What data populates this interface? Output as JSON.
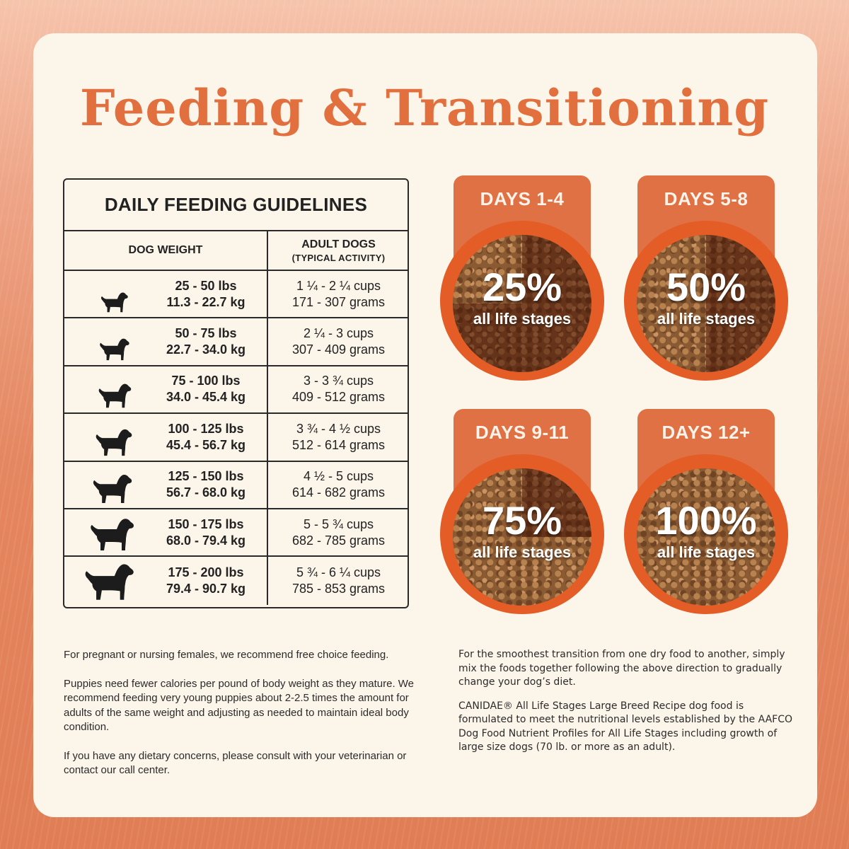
{
  "title": "Feeding & Transitioning",
  "table": {
    "heading": "DAILY FEEDING GUIDELINES",
    "col_weight": "DOG WEIGHT",
    "col_adult_line1": "ADULT DOGS",
    "col_adult_line2": "(TYPICAL ACTIVITY)",
    "rows": [
      {
        "lbs": "25 - 50 lbs",
        "kg": "11.3 - 22.7 kg",
        "cups": "1 ¼ - 2 ¼ cups",
        "grams": "171 - 307 grams",
        "icon": "dog-silhouette-icon"
      },
      {
        "lbs": "50 - 75 lbs",
        "kg": "22.7 - 34.0 kg",
        "cups": "2 ¼ - 3 cups",
        "grams": "307 - 409 grams",
        "icon": "dog-silhouette-icon"
      },
      {
        "lbs": "75 - 100 lbs",
        "kg": "34.0 - 45.4 kg",
        "cups": "3 - 3 ¾ cups",
        "grams": "409 - 512 grams",
        "icon": "dog-silhouette-icon"
      },
      {
        "lbs": "100 - 125 lbs",
        "kg": "45.4 - 56.7 kg",
        "cups": "3 ¾ - 4 ½ cups",
        "grams": "512 - 614 grams",
        "icon": "dog-silhouette-icon"
      },
      {
        "lbs": "125 - 150 lbs",
        "kg": "56.7 - 68.0 kg",
        "cups": "4 ½ - 5 cups",
        "grams": "614 - 682 grams",
        "icon": "dog-silhouette-icon"
      },
      {
        "lbs": "150 - 175 lbs",
        "kg": "68.0 - 79.4 kg",
        "cups": "5 - 5 ¾ cups",
        "grams": "682 - 785 grams",
        "icon": "dog-silhouette-icon"
      },
      {
        "lbs": "175 - 200 lbs",
        "kg": "79.4 - 90.7 kg",
        "cups": "5 ¾ - 6 ¼ cups",
        "grams": "785 - 853 grams",
        "icon": "dog-silhouette-icon"
      }
    ]
  },
  "transition": [
    {
      "days": "DAYS 1-4",
      "percent": "25%",
      "label": "all life stages",
      "fraction": 0.25
    },
    {
      "days": "DAYS 5-8",
      "percent": "50%",
      "label": "all life stages",
      "fraction": 0.5
    },
    {
      "days": "DAYS 9-11",
      "percent": "75%",
      "label": "all life stages",
      "fraction": 0.75
    },
    {
      "days": "DAYS 12+",
      "percent": "100%",
      "label": "all life stages",
      "fraction": 1.0
    }
  ],
  "notes_left": [
    "For pregnant or nursing females, we recommend free choice feeding.",
    "Puppies need fewer calories per pound of body weight as they mature. We recommend feeding very young puppies about 2-2.5 times the amount for adults of the same weight and adjusting as needed to maintain ideal body condition.",
    "If you have any dietary concerns, please consult with your veterinarian or contact our call center."
  ],
  "notes_right": [
    "For the smoothest transition from one dry food to another, simply mix the foods together following the above direction to gradually change your dog’s diet.",
    "CANIDAE® All Life Stages Large Breed Recipe dog food is formulated to meet the nutritional levels established by the AAFCO Dog Food Nutrient Profiles for All Life Stages including growth of large size dogs (70 lb. or more as an adult)."
  ],
  "colors": {
    "accent": "#e2703f",
    "badge_tab": "#e07144",
    "bowl": "#e45d26",
    "card": "#fcf5ea",
    "text": "#222222"
  }
}
